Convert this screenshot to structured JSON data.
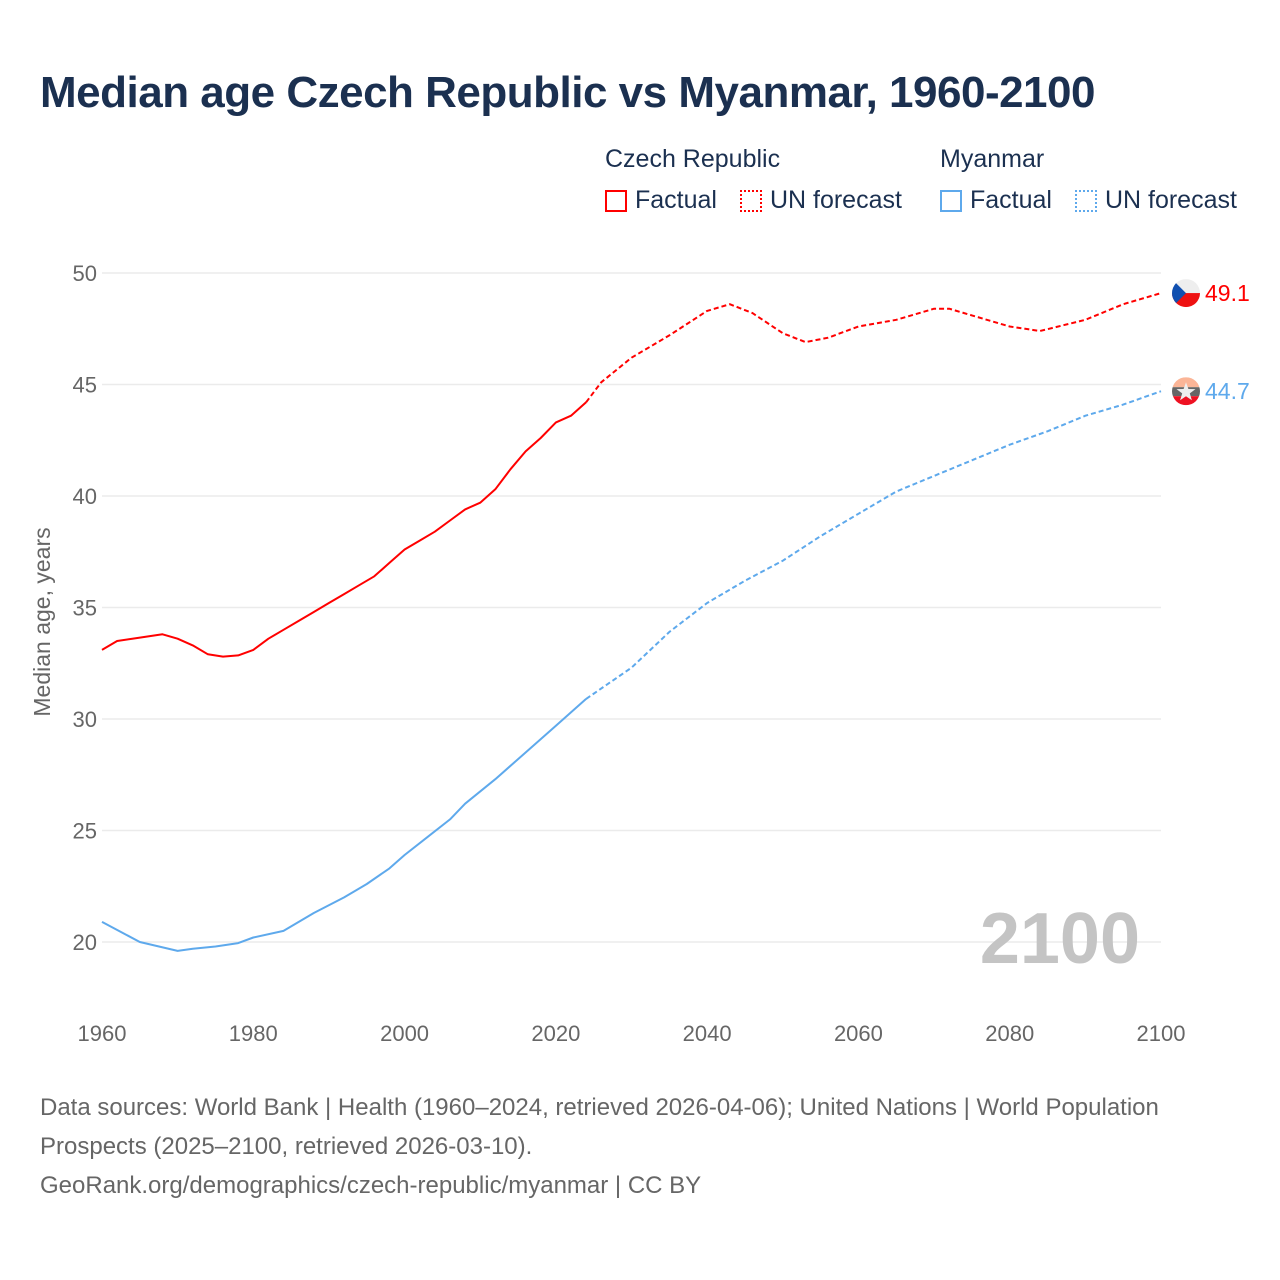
{
  "title": "Median age Czech Republic vs Myanmar, 1960-2100",
  "legend": {
    "groups": [
      {
        "name": "Czech Republic",
        "factual": "Factual",
        "forecast": "UN forecast",
        "color": "#ff0000"
      },
      {
        "name": "Myanmar",
        "factual": "Factual",
        "forecast": "UN forecast",
        "color": "#5ea9ec"
      }
    ]
  },
  "year_watermark": "2100",
  "footer": {
    "line1": "Data sources: World Bank | Health (1960–2024, retrieved 2026-04-06); United Nations | World Population Prospects (2025–2100, retrieved 2026-03-10).",
    "line2": "GeoRank.org/demographics/czech-republic/myanmar | CC BY"
  },
  "chart_data": {
    "type": "line",
    "title": "Median age Czech Republic vs Myanmar, 1960-2100",
    "xlabel": "",
    "ylabel": "Median age, years",
    "xlim": [
      1960,
      2100
    ],
    "ylim": [
      18,
      51
    ],
    "xticks": [
      1960,
      1980,
      2000,
      2020,
      2040,
      2060,
      2080,
      2100
    ],
    "yticks": [
      20,
      25,
      30,
      35,
      40,
      45,
      50
    ],
    "grid": true,
    "legend_position": "top-right",
    "series": [
      {
        "name": "Czech Republic",
        "color": "#ff0000",
        "end_label": "49.1",
        "factual": {
          "x": [
            1960,
            1962,
            1964,
            1966,
            1968,
            1970,
            1972,
            1974,
            1976,
            1978,
            1980,
            1982,
            1984,
            1986,
            1988,
            1990,
            1992,
            1994,
            1996,
            1998,
            2000,
            2002,
            2004,
            2006,
            2008,
            2010,
            2012,
            2014,
            2016,
            2018,
            2020,
            2022,
            2024
          ],
          "y": [
            33.1,
            33.5,
            33.6,
            33.7,
            33.8,
            33.6,
            33.3,
            32.9,
            32.8,
            32.85,
            33.1,
            33.6,
            34.0,
            34.4,
            34.8,
            35.2,
            35.6,
            36.0,
            36.4,
            37.0,
            37.6,
            38.0,
            38.4,
            38.9,
            39.4,
            39.7,
            40.3,
            41.2,
            42.0,
            42.6,
            43.3,
            43.6,
            44.2
          ]
        },
        "forecast": {
          "x": [
            2024,
            2026,
            2030,
            2035,
            2040,
            2043,
            2046,
            2050,
            2053,
            2056,
            2060,
            2065,
            2070,
            2072,
            2075,
            2080,
            2084,
            2090,
            2095,
            2100
          ],
          "y": [
            44.2,
            45.1,
            46.2,
            47.2,
            48.3,
            48.6,
            48.2,
            47.3,
            46.9,
            47.1,
            47.6,
            47.9,
            48.4,
            48.4,
            48.1,
            47.6,
            47.4,
            47.9,
            48.6,
            49.1
          ]
        }
      },
      {
        "name": "Myanmar",
        "color": "#5ea9ec",
        "end_label": "44.7",
        "factual": {
          "x": [
            1960,
            1965,
            1970,
            1972,
            1975,
            1978,
            1980,
            1984,
            1988,
            1992,
            1995,
            1998,
            2000,
            2003,
            2006,
            2008,
            2012,
            2016,
            2020,
            2024
          ],
          "y": [
            20.9,
            20.0,
            19.6,
            19.7,
            19.8,
            19.95,
            20.2,
            20.5,
            21.3,
            22.0,
            22.6,
            23.3,
            23.9,
            24.7,
            25.5,
            26.2,
            27.3,
            28.5,
            29.7,
            30.9
          ]
        },
        "forecast": {
          "x": [
            2024,
            2030,
            2035,
            2040,
            2045,
            2050,
            2055,
            2060,
            2065,
            2070,
            2075,
            2080,
            2085,
            2090,
            2095,
            2100
          ],
          "y": [
            30.9,
            32.3,
            33.9,
            35.2,
            36.2,
            37.1,
            38.2,
            39.2,
            40.2,
            40.9,
            41.6,
            42.3,
            42.9,
            43.6,
            44.1,
            44.7
          ]
        }
      }
    ]
  }
}
